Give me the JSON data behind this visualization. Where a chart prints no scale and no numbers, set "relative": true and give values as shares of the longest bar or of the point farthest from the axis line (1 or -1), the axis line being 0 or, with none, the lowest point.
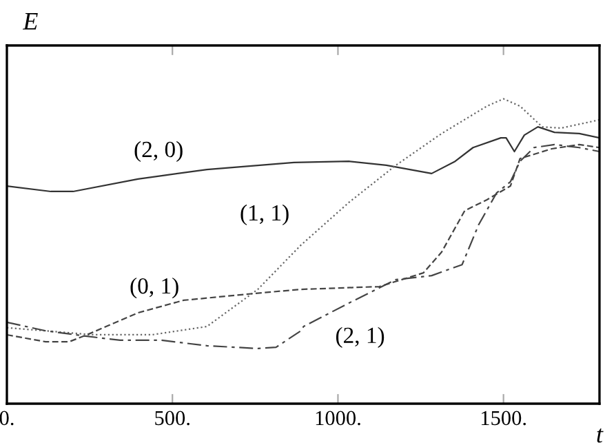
{
  "chart_data": {
    "type": "line",
    "xlabel": "t",
    "ylabel": "E",
    "relative": true,
    "xlim": [
      0,
      1790
    ],
    "xticks": [
      {
        "value": 0,
        "label": "0."
      },
      {
        "value": 500,
        "label": "500."
      },
      {
        "value": 1000,
        "label": "1000."
      },
      {
        "value": 1500,
        "label": "1500."
      }
    ],
    "series": [
      {
        "name": "(2, 0)",
        "color": "#333333",
        "line_style": "solid",
        "x": [
          0,
          133,
          200,
          396,
          604,
          867,
          1033,
          1146,
          1283,
          1354,
          1408,
          1492,
          1508,
          1533,
          1563,
          1604,
          1654,
          1729,
          1790
        ],
        "values": [
          0.714,
          0.696,
          0.696,
          0.737,
          0.768,
          0.791,
          0.795,
          0.782,
          0.755,
          0.795,
          0.84,
          0.872,
          0.872,
          0.827,
          0.881,
          0.908,
          0.89,
          0.886,
          0.872
        ]
      },
      {
        "name": "(1, 1)",
        "color": "#666666",
        "line_style": "dotted",
        "x": [
          0,
          117,
          258,
          438,
          604,
          758,
          888,
          1033,
          1175,
          1313,
          1450,
          1500,
          1550,
          1617,
          1675,
          1790
        ],
        "values": [
          0.249,
          0.239,
          0.226,
          0.226,
          0.253,
          0.375,
          0.52,
          0.66,
          0.782,
          0.886,
          0.976,
          1,
          0.976,
          0.908,
          0.904,
          0.931
        ]
      },
      {
        "name": "(0, 1)",
        "color": "#444444",
        "line_style": "dashed",
        "x": [
          0,
          117,
          188,
          242,
          396,
          533,
          742,
          888,
          1125,
          1258,
          1313,
          1383,
          1450,
          1521,
          1550,
          1592,
          1646,
          1729,
          1790
        ],
        "values": [
          0.226,
          0.203,
          0.203,
          0.226,
          0.298,
          0.339,
          0.361,
          0.375,
          0.384,
          0.429,
          0.497,
          0.633,
          0.669,
          0.714,
          0.804,
          0.818,
          0.836,
          0.85,
          0.84
        ]
      },
      {
        "name": "(2, 1)",
        "color": "#444444",
        "line_style": "dashed",
        "x": [
          0,
          117,
          242,
          342,
          467,
          604,
          758,
          813,
          888,
          896,
          1033,
          1175,
          1283,
          1375,
          1425,
          1479,
          1521,
          1550,
          1592,
          1654,
          1729,
          1790
        ],
        "values": [
          0.267,
          0.239,
          0.221,
          0.208,
          0.208,
          0.19,
          0.181,
          0.185,
          0.239,
          0.253,
          0.33,
          0.407,
          0.42,
          0.456,
          0.587,
          0.691,
          0.728,
          0.795,
          0.84,
          0.85,
          0.84,
          0.827
        ]
      }
    ]
  }
}
